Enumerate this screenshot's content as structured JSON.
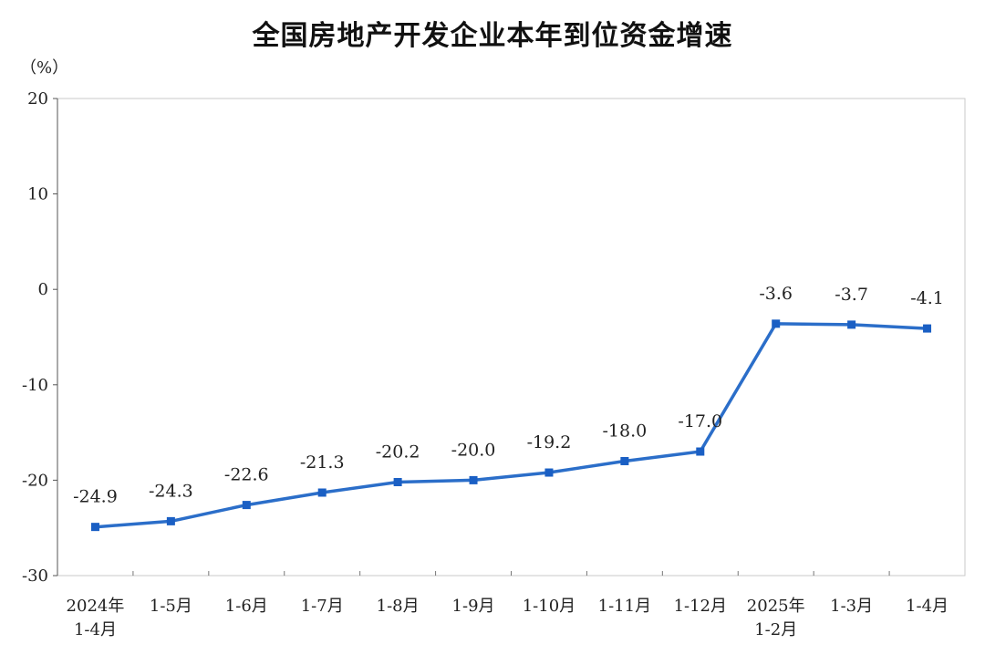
{
  "chart_data": {
    "type": "line",
    "title": "全国房地产开发企业本年到位资金增速",
    "unit_label": "（%）",
    "ylim": [
      -30,
      20
    ],
    "yticks": [
      20,
      10,
      0,
      -10,
      -20,
      -30
    ],
    "categories": [
      [
        "2024年",
        "1-4月"
      ],
      [
        "1-5月"
      ],
      [
        "1-6月"
      ],
      [
        "1-7月"
      ],
      [
        "1-8月"
      ],
      [
        "1-9月"
      ],
      [
        "1-10月"
      ],
      [
        "1-11月"
      ],
      [
        "1-12月"
      ],
      [
        "2025年",
        "1-2月"
      ],
      [
        "1-3月"
      ],
      [
        "1-4月"
      ]
    ],
    "series": [
      {
        "values": [
          -24.9,
          -24.3,
          -22.6,
          -21.3,
          -20.2,
          -20.0,
          -19.2,
          -18.0,
          -17.0,
          -3.6,
          -3.7,
          -4.1
        ],
        "labels": [
          "-24.9",
          "-24.3",
          "-22.6",
          "-21.3",
          "-20.2",
          "-20.0",
          "-19.2",
          "-18.0",
          "-17.0",
          "-3.6",
          "-3.7",
          "-4.1"
        ],
        "color": "#2b6ec9"
      }
    ],
    "grid": false,
    "legend": "none"
  }
}
